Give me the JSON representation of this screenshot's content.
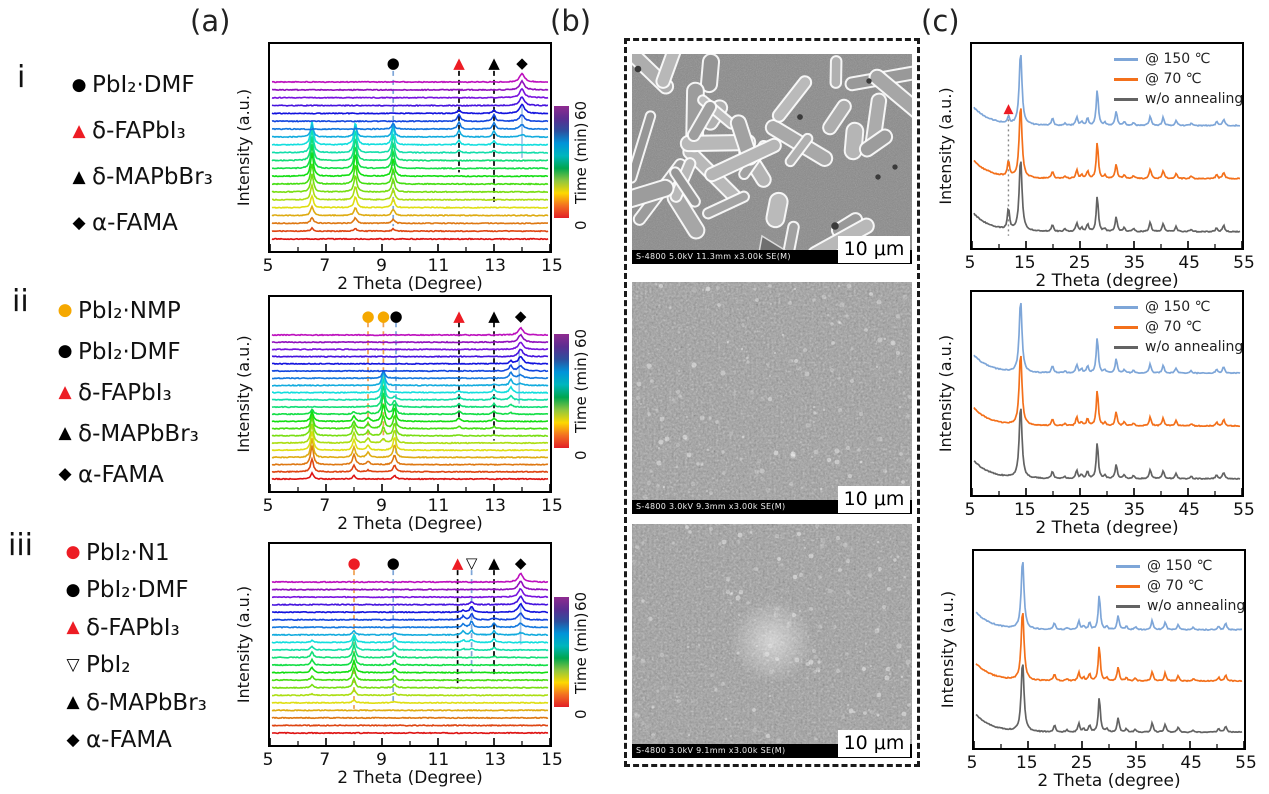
{
  "figure": {
    "panel_a_label": "(a)",
    "panel_b_label": "(b)",
    "panel_c_label": "(c)",
    "row_labels": [
      "i",
      "ii",
      "iii"
    ]
  },
  "colors": {
    "accent_red": "#ed1c24",
    "nmp_yellow": "#f5a800",
    "series_blue": "#7ea6d8",
    "series_orange": "#f3701b",
    "series_gray": "#636363",
    "guide_blue": "#7ea6d8",
    "guide_orange": "#f0a050"
  },
  "legends_a": [
    {
      "row": "i",
      "items": [
        {
          "glyph": "●",
          "color": "#000000",
          "label": "PbI₂·DMF"
        },
        {
          "glyph": "▲",
          "color": "#ed1c24",
          "label": "δ-FAPbI₃"
        },
        {
          "glyph": "▲",
          "color": "#000000",
          "label": "δ-MAPbBr₃"
        },
        {
          "glyph": "◆",
          "color": "#000000",
          "label": "α-FAMA"
        }
      ]
    },
    {
      "row": "ii",
      "items": [
        {
          "glyph": "●",
          "color": "#f5a800",
          "label": "PbI₂·NMP"
        },
        {
          "glyph": "●",
          "color": "#000000",
          "label": "PbI₂·DMF"
        },
        {
          "glyph": "▲",
          "color": "#ed1c24",
          "label": "δ-FAPbI₃"
        },
        {
          "glyph": "▲",
          "color": "#000000",
          "label": "δ-MAPbBr₃"
        },
        {
          "glyph": "◆",
          "color": "#000000",
          "label": "α-FAMA"
        }
      ]
    },
    {
      "row": "iii",
      "items": [
        {
          "glyph": "●",
          "color": "#ed1c24",
          "label": "PbI₂·N1"
        },
        {
          "glyph": "●",
          "color": "#000000",
          "label": "PbI₂·DMF"
        },
        {
          "glyph": "▲",
          "color": "#ed1c24",
          "label": "δ-FAPbI₃"
        },
        {
          "glyph": "▽",
          "color": "#000000",
          "label": "PbI₂"
        },
        {
          "glyph": "▲",
          "color": "#000000",
          "label": "δ-MAPbBr₃"
        },
        {
          "glyph": "◆",
          "color": "#000000",
          "label": "α-FAMA"
        }
      ]
    }
  ],
  "sem_images": [
    {
      "meta": "S-4800 5.0kV 11.3mm x3.00k SE(M)",
      "scale_label": "10 μm",
      "texture": "rods"
    },
    {
      "meta": "S-4800 3.0kV 9.3mm x3.00k SE(M)",
      "scale_label": "10 μm",
      "texture": "grains"
    },
    {
      "meta": "S-4800 3.0kV 9.1mm x3.00k SE(M)",
      "scale_label": "10 μm",
      "texture": "grains-spot"
    }
  ],
  "chart_data": [
    {
      "id": "a-i",
      "type": "line",
      "variant": "waterfall",
      "xlabel": "2 Theta (Degree)",
      "ylabel": "Intensity (a.u.)",
      "x_range": [
        5,
        15
      ],
      "x_ticks": [
        5,
        7,
        9,
        11,
        13,
        15
      ],
      "colorbar": {
        "label": "Time (min)",
        "min_label": "0",
        "max_label": "60"
      },
      "n_traces": 21,
      "time_min": 0,
      "time_max": 60,
      "peaks": [
        {
          "x": 6.5,
          "h": 3.0,
          "rise": [
            1,
            8
          ],
          "fall": [
            12,
            14
          ]
        },
        {
          "x": 8.05,
          "h": 2.8,
          "rise": [
            1,
            8
          ],
          "fall": [
            12,
            14
          ]
        },
        {
          "x": 9.4,
          "h": 2.2,
          "rise": [
            1,
            8
          ],
          "fall": [
            12,
            15
          ]
        },
        {
          "x": 11.75,
          "h": 0.9,
          "rise": [
            11,
            13
          ],
          "fall": [
            15,
            17
          ]
        },
        {
          "x": 13.0,
          "h": 0.8,
          "rise": [
            11,
            13
          ],
          "fall": [
            15,
            17
          ]
        },
        {
          "x": 14.0,
          "h": 1.1,
          "g": 0.1,
          "rise": [
            13,
            16
          ],
          "fall": [
            21,
            23
          ]
        }
      ],
      "markers": [
        {
          "x": 9.4,
          "glyph": "●",
          "color": "#000000",
          "phase": "PbI₂·DMF"
        },
        {
          "x": 11.75,
          "glyph": "▲",
          "color": "#ed1c24",
          "phase": "δ-FAPbI₃"
        },
        {
          "x": 13.0,
          "glyph": "▲",
          "color": "#000000",
          "phase": "δ-MAPbBr₃"
        },
        {
          "x": 14.0,
          "glyph": "◆",
          "color": "#000000",
          "phase": "α-FAMA"
        }
      ],
      "guide_lines": [
        {
          "x": 9.4,
          "color": "#7ea6d8",
          "dash": true,
          "from": 0.13,
          "to": 0.88
        },
        {
          "x": 11.75,
          "color": "#000000",
          "dash": true,
          "from": 0.13,
          "to": 0.62
        },
        {
          "x": 13.0,
          "color": "#000000",
          "dash": true,
          "from": 0.13,
          "to": 0.78
        },
        {
          "x": 14.0,
          "color": "#9fc5e8",
          "dash": false,
          "from": 0.3,
          "to": 0.55
        }
      ]
    },
    {
      "id": "a-ii",
      "type": "line",
      "variant": "waterfall",
      "xlabel": "2 Theta (Degree)",
      "ylabel": "Intensity (a.u.)",
      "x_range": [
        5,
        15
      ],
      "x_ticks": [
        5,
        7,
        9,
        11,
        13,
        15
      ],
      "colorbar": {
        "label": "Time (min)",
        "min_label": "0",
        "max_label": "60"
      },
      "n_traces": 21,
      "time_min": 0,
      "time_max": 60,
      "peaks": [
        {
          "x": 6.5,
          "h": 2.6,
          "rise": [
            0,
            2
          ],
          "fall": [
            6,
            10
          ]
        },
        {
          "x": 8.0,
          "h": 1.4,
          "rise": [
            0,
            2
          ],
          "fall": [
            6,
            10
          ]
        },
        {
          "x": 8.5,
          "h": 0.7,
          "rise": [
            1,
            3
          ],
          "fall": [
            7,
            11
          ]
        },
        {
          "x": 9.45,
          "h": 1.8,
          "rise": [
            0,
            3
          ],
          "fall": [
            8,
            12
          ]
        },
        {
          "x": 9.05,
          "h": 3.0,
          "rise": [
            5,
            9
          ],
          "fall": [
            12,
            15
          ]
        },
        {
          "x": 11.75,
          "h": 0.5,
          "rise": [
            6,
            8
          ],
          "fall": [
            11,
            13
          ]
        },
        {
          "x": 13.0,
          "h": 0.45,
          "rise": [
            6,
            8
          ],
          "fall": [
            12,
            14
          ]
        },
        {
          "x": 13.6,
          "h": 0.8,
          "rise": [
            9,
            12
          ],
          "fall": [
            15,
            17
          ]
        },
        {
          "x": 13.95,
          "h": 1.0,
          "g": 0.1,
          "rise": [
            13,
            16
          ],
          "fall": [
            21,
            23
          ]
        }
      ],
      "markers": [
        {
          "x": 8.5,
          "glyph": "●",
          "color": "#f5a800",
          "phase": "PbI₂·NMP"
        },
        {
          "x": 9.05,
          "glyph": "●",
          "color": "#f5a800",
          "phase": "PbI₂·NMP"
        },
        {
          "x": 9.5,
          "glyph": "●",
          "color": "#000000",
          "phase": "PbI₂·DMF"
        },
        {
          "x": 11.75,
          "glyph": "▲",
          "color": "#ed1c24",
          "phase": "δ-FAPbI₃"
        },
        {
          "x": 13.0,
          "glyph": "▲",
          "color": "#000000",
          "phase": "δ-MAPbBr₃"
        },
        {
          "x": 13.95,
          "glyph": "◆",
          "color": "#000000",
          "phase": "α-FAMA"
        }
      ],
      "guide_lines": [
        {
          "x": 8.5,
          "color": "#f0a050",
          "dash": true,
          "from": 0.13,
          "to": 0.72
        },
        {
          "x": 9.05,
          "color": "#f0a050",
          "dash": true,
          "from": 0.13,
          "to": 0.74
        },
        {
          "x": 9.5,
          "color": "#7ea6d8",
          "dash": true,
          "from": 0.13,
          "to": 0.82
        },
        {
          "x": 11.75,
          "color": "#000000",
          "dash": true,
          "from": 0.13,
          "to": 0.64
        },
        {
          "x": 13.0,
          "color": "#000000",
          "dash": true,
          "from": 0.13,
          "to": 0.74
        },
        {
          "x": 13.9,
          "color": "#9fc5e8",
          "dash": false,
          "from": 0.28,
          "to": 0.55
        }
      ]
    },
    {
      "id": "a-iii",
      "type": "line",
      "variant": "waterfall",
      "xlabel": "2 Theta (Degree)",
      "ylabel": "Intensity (a.u.)",
      "x_range": [
        5,
        15
      ],
      "x_ticks": [
        5,
        7,
        9,
        11,
        13,
        15
      ],
      "colorbar": {
        "label": "Time (min)",
        "min_label": "0",
        "max_label": "60"
      },
      "n_traces": 21,
      "time_min": 0,
      "time_max": 60,
      "peaks": [
        {
          "x": 6.5,
          "h": 0.7,
          "rise": [
            5,
            8
          ],
          "fall": [
            10,
            13
          ]
        },
        {
          "x": 8.0,
          "h": 1.6,
          "rise": [
            4,
            7
          ],
          "fall": [
            11,
            14
          ]
        },
        {
          "x": 9.45,
          "h": 0.6,
          "rise": [
            4,
            7
          ],
          "fall": [
            12,
            14
          ]
        },
        {
          "x": 11.9,
          "h": 0.5,
          "rise": [
            11,
            13
          ],
          "fall": [
            15,
            17
          ]
        },
        {
          "x": 12.2,
          "h": 0.8,
          "rise": [
            11,
            14
          ],
          "fall": [
            16,
            18
          ]
        },
        {
          "x": 13.0,
          "h": 0.5,
          "rise": [
            10,
            12
          ],
          "fall": [
            14,
            16
          ]
        },
        {
          "x": 13.95,
          "h": 1.1,
          "g": 0.1,
          "rise": [
            13,
            16
          ],
          "fall": [
            21,
            23
          ]
        }
      ],
      "markers": [
        {
          "x": 8.0,
          "glyph": "●",
          "color": "#ed1c24",
          "phase": "PbI₂·N1"
        },
        {
          "x": 9.4,
          "glyph": "●",
          "color": "#000000",
          "phase": "PbI₂·DMF"
        },
        {
          "x": 11.7,
          "glyph": "▲",
          "color": "#ed1c24",
          "phase": "δ-FAPbI₃"
        },
        {
          "x": 12.2,
          "glyph": "▽",
          "color": "#000000",
          "phase": "PbI₂"
        },
        {
          "x": 13.0,
          "glyph": "▲",
          "color": "#000000",
          "phase": "δ-MAPbBr₃"
        },
        {
          "x": 13.95,
          "glyph": "◆",
          "color": "#000000",
          "phase": "α-FAMA"
        }
      ],
      "guide_lines": [
        {
          "x": 8.0,
          "color": "#f0a050",
          "dash": true,
          "from": 0.13,
          "to": 0.82
        },
        {
          "x": 9.4,
          "color": "#7ea6d8",
          "dash": true,
          "from": 0.13,
          "to": 0.8
        },
        {
          "x": 11.7,
          "color": "#000000",
          "dash": true,
          "from": 0.13,
          "to": 0.72
        },
        {
          "x": 12.2,
          "color": "#7ea6d8",
          "dash": true,
          "from": 0.13,
          "to": 0.64
        },
        {
          "x": 13.0,
          "color": "#000000",
          "dash": true,
          "from": 0.13,
          "to": 0.66
        },
        {
          "x": 13.95,
          "color": "#9fc5e8",
          "dash": false,
          "from": 0.3,
          "to": 0.5
        }
      ]
    },
    {
      "id": "c-i",
      "type": "line",
      "variant": "stacked-xrd",
      "xlabel": "2 Theta (degree)",
      "ylabel": "Intensity (a.u.)",
      "x_range": [
        5,
        55
      ],
      "x_ticks": [
        5,
        15,
        25,
        35,
        45,
        55
      ],
      "legend_position": "top-right",
      "series": [
        {
          "name": "@ 150 ℃",
          "color": "#7ea6d8",
          "offset": 0.4
        },
        {
          "name": "@  70 ℃",
          "color": "#f3701b",
          "offset": 0.66
        },
        {
          "name": "w/o annealing",
          "color": "#636363",
          "offset": 0.92
        }
      ],
      "peaks": [
        [
          14.0,
          1.0
        ],
        [
          19.9,
          0.1
        ],
        [
          22.2,
          0.03
        ],
        [
          24.4,
          0.12
        ],
        [
          25.3,
          0.05
        ],
        [
          26.4,
          0.1
        ],
        [
          28.2,
          0.5
        ],
        [
          29.6,
          0.04
        ],
        [
          31.7,
          0.2
        ],
        [
          33.2,
          0.05
        ],
        [
          34.9,
          0.04
        ],
        [
          38.0,
          0.13
        ],
        [
          40.4,
          0.11
        ],
        [
          42.8,
          0.07
        ],
        [
          45.6,
          0.03
        ],
        [
          50.3,
          0.05
        ],
        [
          51.6,
          0.09
        ]
      ],
      "delta_peak": {
        "x": 11.75,
        "heights": [
          0.03,
          0.07,
          0.1
        ]
      },
      "annotation": {
        "x": 11.75,
        "glyph": "▲",
        "color": "#ed1c24",
        "guide": "dotted"
      }
    },
    {
      "id": "c-ii",
      "type": "line",
      "variant": "stacked-xrd",
      "xlabel": "2 Theta (degree)",
      "ylabel": "Intensity (a.u.)",
      "x_range": [
        5,
        55
      ],
      "x_ticks": [
        5,
        15,
        25,
        35,
        45,
        55
      ],
      "legend_position": "top-right",
      "series": [
        {
          "name": "@ 150 ℃",
          "color": "#7ea6d8",
          "offset": 0.4
        },
        {
          "name": "@  70 ℃",
          "color": "#f3701b",
          "offset": 0.66
        },
        {
          "name": "w/o annealing",
          "color": "#636363",
          "offset": 0.92
        }
      ],
      "peaks": [
        [
          14.0,
          1.0
        ],
        [
          19.9,
          0.1
        ],
        [
          22.2,
          0.03
        ],
        [
          24.4,
          0.12
        ],
        [
          25.3,
          0.05
        ],
        [
          26.4,
          0.1
        ],
        [
          28.2,
          0.5
        ],
        [
          29.6,
          0.04
        ],
        [
          31.7,
          0.2
        ],
        [
          33.2,
          0.05
        ],
        [
          34.9,
          0.04
        ],
        [
          38.0,
          0.13
        ],
        [
          40.4,
          0.11
        ],
        [
          42.8,
          0.07
        ],
        [
          45.6,
          0.03
        ],
        [
          50.3,
          0.05
        ],
        [
          51.6,
          0.09
        ]
      ]
    },
    {
      "id": "c-iii",
      "type": "line",
      "variant": "stacked-xrd",
      "xlabel": "2 Theta (degree)",
      "ylabel": "Intensity (a.u.)",
      "x_range": [
        5,
        55
      ],
      "x_ticks": [
        5,
        15,
        25,
        35,
        45,
        55
      ],
      "legend_position": "top-right",
      "series": [
        {
          "name": "@ 150 ℃",
          "color": "#7ea6d8",
          "offset": 0.4
        },
        {
          "name": "@  70 ℃",
          "color": "#f3701b",
          "offset": 0.66
        },
        {
          "name": "w/o annealing",
          "color": "#636363",
          "offset": 0.92
        }
      ],
      "peaks": [
        [
          14.0,
          1.0
        ],
        [
          19.9,
          0.1
        ],
        [
          22.2,
          0.03
        ],
        [
          24.4,
          0.12
        ],
        [
          25.3,
          0.05
        ],
        [
          26.4,
          0.1
        ],
        [
          28.2,
          0.5
        ],
        [
          29.6,
          0.04
        ],
        [
          31.7,
          0.2
        ],
        [
          33.2,
          0.05
        ],
        [
          34.9,
          0.04
        ],
        [
          38.0,
          0.13
        ],
        [
          40.4,
          0.11
        ],
        [
          42.8,
          0.07
        ],
        [
          45.6,
          0.03
        ],
        [
          50.3,
          0.05
        ],
        [
          51.6,
          0.09
        ]
      ]
    }
  ]
}
